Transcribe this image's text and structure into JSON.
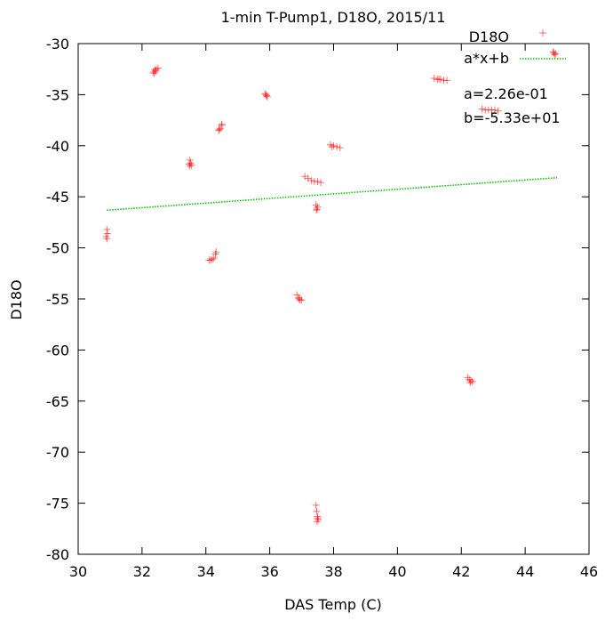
{
  "chart_data": {
    "type": "scatter",
    "title": "1-min T-Pump1, D18O, 2015/11",
    "xlabel": "DAS Temp (C)",
    "ylabel": "D18O",
    "xlim": [
      30,
      46
    ],
    "ylim": [
      -80,
      -30
    ],
    "xticks": [
      30,
      32,
      34,
      36,
      38,
      40,
      42,
      44,
      46
    ],
    "yticks": [
      -30,
      -35,
      -40,
      -45,
      -50,
      -55,
      -60,
      -65,
      -70,
      -75,
      -80
    ],
    "grid": false,
    "legend_position": "top-right",
    "series": [
      {
        "name": "D18O",
        "color": "#ff0000",
        "marker": "plus",
        "points": [
          [
            44.9,
            -30.9
          ],
          [
            44.95,
            -31.0
          ],
          [
            44.88,
            -30.8
          ],
          [
            44.92,
            -31.1
          ],
          [
            32.35,
            -32.8
          ],
          [
            32.4,
            -32.6
          ],
          [
            32.45,
            -32.5
          ],
          [
            32.5,
            -32.4
          ],
          [
            32.38,
            -32.9
          ],
          [
            32.42,
            -32.7
          ],
          [
            35.85,
            -34.9
          ],
          [
            35.9,
            -35.1
          ],
          [
            35.88,
            -35.0
          ],
          [
            35.92,
            -35.2
          ],
          [
            41.15,
            -33.4
          ],
          [
            41.25,
            -33.5
          ],
          [
            41.35,
            -33.5
          ],
          [
            41.45,
            -33.6
          ],
          [
            41.55,
            -33.6
          ],
          [
            41.3,
            -33.5
          ],
          [
            42.65,
            -36.4
          ],
          [
            42.75,
            -36.5
          ],
          [
            42.85,
            -36.5
          ],
          [
            42.95,
            -36.5
          ],
          [
            43.05,
            -36.5
          ],
          [
            43.15,
            -36.6
          ],
          [
            34.4,
            -38.5
          ],
          [
            34.45,
            -38.3
          ],
          [
            34.5,
            -38.0
          ],
          [
            34.5,
            -37.9
          ],
          [
            34.42,
            -38.4
          ],
          [
            37.9,
            -39.9
          ],
          [
            38.0,
            -40.0
          ],
          [
            38.1,
            -40.1
          ],
          [
            38.2,
            -40.2
          ],
          [
            37.95,
            -40.1
          ],
          [
            33.5,
            -41.4
          ],
          [
            33.52,
            -41.7
          ],
          [
            33.55,
            -41.9
          ],
          [
            33.5,
            -42.0
          ],
          [
            33.48,
            -41.8
          ],
          [
            37.1,
            -43.0
          ],
          [
            37.2,
            -43.2
          ],
          [
            37.3,
            -43.4
          ],
          [
            37.4,
            -43.5
          ],
          [
            37.5,
            -43.5
          ],
          [
            37.6,
            -43.6
          ],
          [
            37.45,
            -45.8
          ],
          [
            37.48,
            -46.2
          ],
          [
            37.5,
            -46.0
          ],
          [
            37.46,
            -46.3
          ],
          [
            30.9,
            -48.2
          ],
          [
            30.92,
            -48.6
          ],
          [
            30.88,
            -48.9
          ],
          [
            30.9,
            -49.1
          ],
          [
            34.1,
            -51.2
          ],
          [
            34.2,
            -51.1
          ],
          [
            34.25,
            -51.0
          ],
          [
            34.3,
            -50.6
          ],
          [
            34.32,
            -50.4
          ],
          [
            34.15,
            -51.2
          ],
          [
            36.85,
            -54.6
          ],
          [
            36.9,
            -54.9
          ],
          [
            36.95,
            -55.1
          ],
          [
            37.0,
            -55.1
          ],
          [
            36.92,
            -55.0
          ],
          [
            42.2,
            -62.7
          ],
          [
            42.25,
            -62.9
          ],
          [
            42.3,
            -63.0
          ],
          [
            42.35,
            -63.1
          ],
          [
            42.28,
            -63.2
          ],
          [
            37.45,
            -75.2
          ],
          [
            37.47,
            -75.8
          ],
          [
            37.5,
            -76.3
          ],
          [
            37.52,
            -76.6
          ],
          [
            37.48,
            -76.8
          ],
          [
            37.5,
            -76.5
          ]
        ]
      },
      {
        "name": "a*x+b",
        "type": "line",
        "color": "#00cc00",
        "style": "dotted",
        "x": [
          30.9,
          45.0
        ],
        "a": 0.226,
        "b": -53.3
      }
    ],
    "legend": {
      "entries": [
        "D18O",
        "a*x+b"
      ],
      "annotations": [
        "a=2.26e-01",
        "b=-5.33e+01"
      ]
    }
  }
}
